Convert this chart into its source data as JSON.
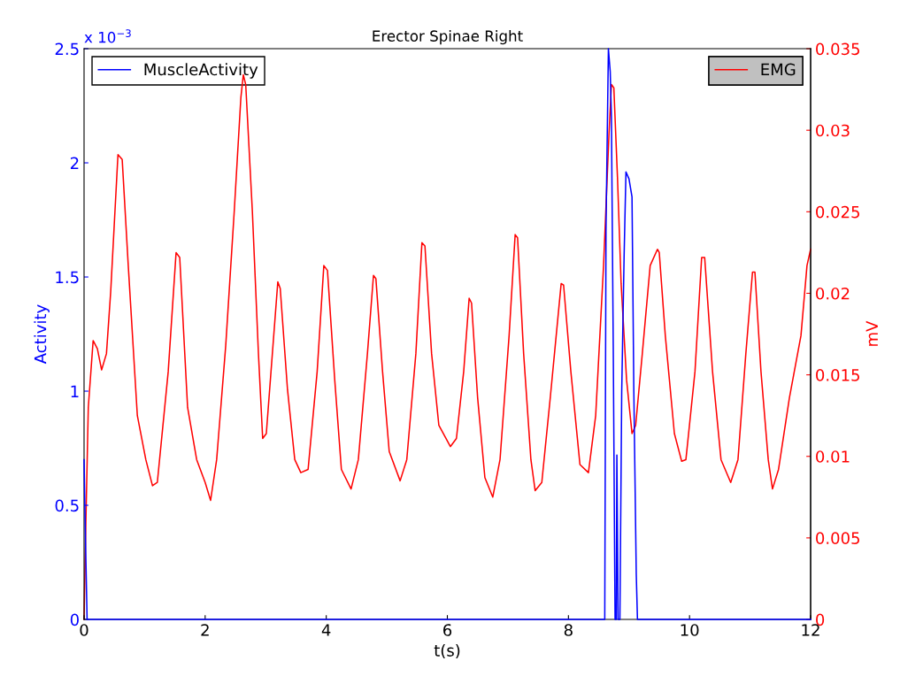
{
  "chart_data": {
    "type": "line",
    "title": "Erector Spinae Right",
    "xlabel": "t(s)",
    "ylabel": "Activity",
    "y2label": "mV",
    "annotations": [
      "x 10$^{−3}$"
    ],
    "xlim": [
      0,
      12
    ],
    "xticks": [
      0,
      2,
      4,
      6,
      8,
      10,
      12
    ],
    "ylim": [
      0,
      2.5
    ],
    "yticks": [
      0,
      0.5,
      1,
      1.5,
      2,
      2.5
    ],
    "y2lim": [
      0,
      0.035
    ],
    "y2ticks": [
      0,
      0.005,
      0.01,
      0.015,
      0.02,
      0.025,
      0.03,
      0.035
    ],
    "grid": false,
    "legend": "top",
    "series": [
      {
        "name": "MuscleActivity",
        "color": "#0000ff",
        "axis": "y",
        "x": [
          0,
          0.02,
          0.05,
          8.6,
          8.62,
          8.66,
          8.69,
          8.71,
          8.74,
          8.77,
          8.79,
          8.8,
          8.82,
          8.85,
          8.88,
          8.92,
          8.95,
          9.0,
          9.05,
          9.08,
          9.12,
          9.14,
          12
        ],
        "values": [
          0.7,
          0.4,
          0,
          0,
          1.7,
          2.5,
          2.4,
          2.2,
          1.2,
          0,
          0,
          0.72,
          0,
          0,
          1.0,
          1.6,
          1.96,
          1.93,
          1.85,
          1.0,
          0.2,
          0,
          0
        ]
      },
      {
        "name": "EMG",
        "color": "#ff0000",
        "axis": "y2",
        "x": [
          0,
          0.03,
          0.07,
          0.15,
          0.22,
          0.29,
          0.37,
          0.44,
          0.56,
          0.63,
          0.73,
          0.88,
          1.02,
          1.13,
          1.21,
          1.39,
          1.52,
          1.58,
          1.71,
          1.86,
          2.0,
          2.09,
          2.19,
          2.34,
          2.48,
          2.59,
          2.63,
          2.67,
          2.78,
          2.88,
          2.95,
          3.01,
          3.11,
          3.2,
          3.24,
          3.36,
          3.48,
          3.58,
          3.7,
          3.85,
          3.96,
          4.02,
          4.14,
          4.25,
          4.41,
          4.53,
          4.68,
          4.78,
          4.82,
          4.93,
          5.04,
          5.22,
          5.33,
          5.48,
          5.58,
          5.63,
          5.74,
          5.86,
          6.05,
          6.15,
          6.27,
          6.36,
          6.4,
          6.5,
          6.62,
          6.75,
          6.87,
          7.02,
          7.12,
          7.16,
          7.26,
          7.38,
          7.45,
          7.56,
          7.7,
          7.88,
          7.92,
          8.04,
          8.19,
          8.33,
          8.45,
          8.58,
          8.67,
          8.71,
          8.75,
          8.81,
          8.87,
          8.96,
          9.05,
          9.11,
          9.22,
          9.35,
          9.47,
          9.5,
          9.6,
          9.75,
          9.87,
          9.94,
          10.09,
          10.2,
          10.25,
          10.38,
          10.52,
          10.68,
          10.8,
          10.93,
          11.04,
          11.08,
          11.18,
          11.3,
          11.37,
          11.47,
          11.65,
          11.84,
          11.94,
          12.0
        ],
        "values": [
          0,
          0.006,
          0.013,
          0.0171,
          0.0166,
          0.0153,
          0.0163,
          0.0201,
          0.0285,
          0.0282,
          0.0217,
          0.0125,
          0.0098,
          0.0082,
          0.0084,
          0.0152,
          0.0225,
          0.0222,
          0.013,
          0.0098,
          0.0084,
          0.0073,
          0.0098,
          0.0168,
          0.025,
          0.032,
          0.0334,
          0.0328,
          0.025,
          0.0163,
          0.0111,
          0.0114,
          0.0163,
          0.0207,
          0.0203,
          0.0141,
          0.0098,
          0.009,
          0.0092,
          0.0152,
          0.0217,
          0.0214,
          0.0147,
          0.0092,
          0.008,
          0.0098,
          0.0163,
          0.0211,
          0.0209,
          0.0152,
          0.0103,
          0.0085,
          0.0098,
          0.0163,
          0.0231,
          0.0229,
          0.0163,
          0.0119,
          0.0106,
          0.0111,
          0.0152,
          0.0197,
          0.0194,
          0.0136,
          0.0087,
          0.0075,
          0.0098,
          0.0174,
          0.0236,
          0.0234,
          0.0163,
          0.0098,
          0.0079,
          0.0084,
          0.0136,
          0.0206,
          0.0205,
          0.0152,
          0.0095,
          0.009,
          0.0125,
          0.0217,
          0.0298,
          0.0328,
          0.0326,
          0.0271,
          0.0206,
          0.0147,
          0.0114,
          0.0119,
          0.0163,
          0.0217,
          0.0227,
          0.0225,
          0.0174,
          0.0114,
          0.0097,
          0.0098,
          0.0152,
          0.0222,
          0.0222,
          0.0152,
          0.0098,
          0.0084,
          0.0098,
          0.0163,
          0.0213,
          0.0213,
          0.0152,
          0.0098,
          0.008,
          0.0092,
          0.0136,
          0.0174,
          0.0217,
          0.0227
        ]
      }
    ]
  }
}
